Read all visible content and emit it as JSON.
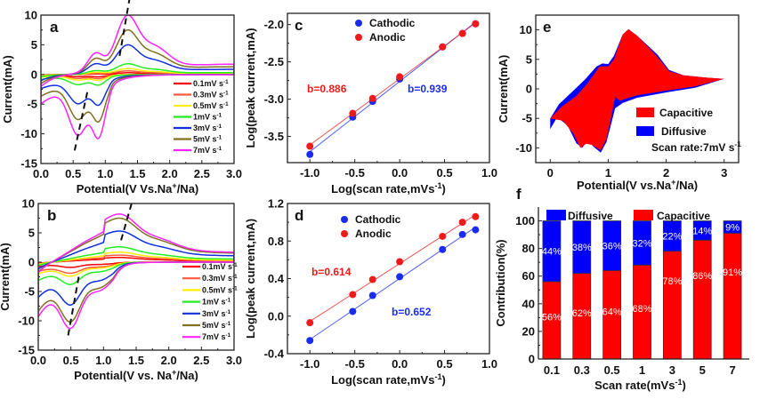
{
  "chart_data": [
    {
      "id": "a",
      "type": "line",
      "panel_label": "a",
      "xlabel": "Potential(V Vs.Na+/Na)",
      "ylabel": "Current(mA)",
      "xlim": [
        0,
        3.0
      ],
      "ylim": [
        -15,
        10
      ],
      "xticks": [
        "0.0",
        "0.5",
        "1.0",
        "1.5",
        "2.0",
        "2.5",
        "3.0"
      ],
      "yticks": [
        "10",
        "5",
        "0",
        "-5",
        "-10",
        "-15"
      ],
      "legend": [
        "0.1mV s-1",
        "0.3mV s-1",
        "0.5mV s-1",
        "1mV s-1",
        "3mV s-1",
        "5mV s-1",
        "7mV s-1"
      ],
      "colors": [
        "#ff0000",
        "#ff5a3c",
        "#ffee00",
        "#22ee22",
        "#1030e0",
        "#807020",
        "#ff22ff"
      ],
      "peaks": {
        "anodic_peak_V": 1.3,
        "cathodic_peaks_V": [
          0.6,
          0.9
        ]
      },
      "series_peak_currents": {
        "anodic": [
          0.3,
          0.6,
          1.0,
          1.8,
          5.0,
          7.5,
          10.0
        ],
        "cathodic": [
          -0.4,
          -0.7,
          -1.0,
          -1.8,
          -5.2,
          -8.0,
          -10.8
        ]
      }
    },
    {
      "id": "b",
      "type": "line",
      "panel_label": "b",
      "xlabel": "Potential(V vs. Na+/Na)",
      "ylabel": "Current(mA)",
      "xlim": [
        0,
        3.0
      ],
      "ylim": [
        -15,
        10
      ],
      "xticks": [
        "0.0",
        "0.5",
        "1.0",
        "1.5",
        "2.0",
        "2.5",
        "3.0"
      ],
      "yticks": [
        "10",
        "5",
        "0",
        "-5",
        "-10",
        "-15"
      ],
      "legend": [
        "0.1mV s-1",
        "0.3mV s-1",
        "0.5mV s-1",
        "1mV s-1",
        "3mV s-1",
        "5mV s-1",
        "7mV s-1"
      ],
      "colors": [
        "#ff0000",
        "#ff5a3c",
        "#ffee00",
        "#22ee22",
        "#1030e0",
        "#807020",
        "#ff22ff"
      ],
      "series_peak_currents": {
        "anodic": [
          0.8,
          1.2,
          1.7,
          2.6,
          5.3,
          7.5,
          8.2
        ],
        "cathodic": [
          -0.9,
          -1.9,
          -2.4,
          -3.8,
          -7.3,
          -10.2,
          -11.3
        ]
      }
    },
    {
      "id": "c",
      "type": "scatter",
      "panel_label": "c",
      "xlabel": "Log(scan rate,mVs-1)",
      "ylabel": "Log(peak current,mA)",
      "xlim": [
        -1.25,
        1.0
      ],
      "ylim": [
        -3.85,
        -1.85
      ],
      "xticks": [
        -1.0,
        -0.5,
        0.0,
        0.5,
        1.0
      ],
      "yticks": [
        -2.0,
        -2.5,
        -3.0,
        -3.5
      ],
      "x": [
        -1.0,
        -0.523,
        -0.301,
        0.0,
        0.477,
        0.699,
        0.845
      ],
      "series": [
        {
          "name": "Cathodic",
          "color": "#1a2cf0",
          "values": [
            -3.74,
            -3.24,
            -3.03,
            -2.73,
            -2.3,
            -2.12,
            -1.99
          ],
          "slope_label": "b=0.939"
        },
        {
          "name": "Anodic",
          "color": "#f01a1a",
          "values": [
            -3.63,
            -3.19,
            -2.99,
            -2.7,
            -2.3,
            -2.12,
            -1.99
          ],
          "slope_label": "b=0.886"
        }
      ]
    },
    {
      "id": "d",
      "type": "scatter",
      "panel_label": "d",
      "xlabel": "Log(scan rate,mVs-1)",
      "ylabel": "Log(peak current,mA)",
      "xlim": [
        -1.25,
        1.0
      ],
      "ylim": [
        -0.4,
        1.2
      ],
      "xticks": [
        -1.0,
        -0.5,
        0.0,
        0.5,
        1.0
      ],
      "yticks": [
        1.2,
        0.8,
        0.4,
        0.0,
        -0.4
      ],
      "x": [
        -1.0,
        -0.523,
        -0.301,
        0.0,
        0.477,
        0.699,
        0.845
      ],
      "series": [
        {
          "name": "Cathodic",
          "color": "#1a2cf0",
          "values": [
            -0.26,
            0.05,
            0.22,
            0.42,
            0.71,
            0.87,
            0.92
          ],
          "slope_label": "b=0.652"
        },
        {
          "name": "Anodic",
          "color": "#f01a1a",
          "values": [
            -0.07,
            0.23,
            0.39,
            0.58,
            0.85,
            1.0,
            1.06
          ],
          "slope_label": "b=0.614"
        }
      ]
    },
    {
      "id": "e",
      "type": "area",
      "panel_label": "e",
      "xlabel": "Potential(V vs.Na+/Na)",
      "ylabel": "Current(mA)",
      "xlim": [
        -0.25,
        3.25
      ],
      "ylim": [
        -12.5,
        12.5
      ],
      "xticks": [
        0,
        1,
        2,
        3
      ],
      "yticks": [
        10,
        5,
        0,
        -5,
        -10
      ],
      "legend": [
        {
          "name": "Capacitive",
          "color": "#ff0000"
        },
        {
          "name": "Diffusive",
          "color": "#0000ff"
        }
      ],
      "annotation": "Scan rate:7mV s-1"
    },
    {
      "id": "f",
      "type": "bar",
      "panel_label": "f",
      "xlabel": "Scan rate(mVs-1)",
      "ylabel": "Contribution(%)",
      "ylim": [
        0,
        110
      ],
      "yticks": [
        0,
        20,
        40,
        60,
        80,
        100
      ],
      "categories": [
        "0.1",
        "0.3",
        "0.5",
        "1",
        "3",
        "5",
        "7"
      ],
      "series": [
        {
          "name": "Capacitive",
          "color": "#ff0000",
          "values": [
            56,
            62,
            64,
            68,
            78,
            86,
            91
          ]
        },
        {
          "name": "Diffusive",
          "color": "#0000ff",
          "values": [
            44,
            38,
            36,
            32,
            22,
            14,
            9
          ]
        }
      ]
    }
  ]
}
